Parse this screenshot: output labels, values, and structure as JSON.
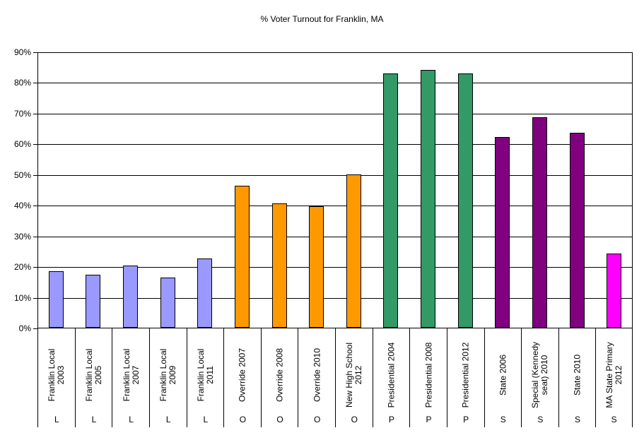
{
  "chart_data": {
    "type": "bar",
    "title": "% Voter Turnout for Franklin, MA",
    "xlabel": "",
    "ylabel": "",
    "ylim": [
      0,
      90
    ],
    "yticks": [
      "0%",
      "10%",
      "20%",
      "30%",
      "40%",
      "50%",
      "60%",
      "70%",
      "80%",
      "90%"
    ],
    "grid": true,
    "legend": null,
    "categories": [
      "Franklin Local 2003",
      "Franklin Local 2005",
      "Franklin Local 2007",
      "Franklin Local 2009",
      "Franklin Local 2011",
      "Override 2007",
      "Override 2008",
      "Override 2010",
      "New High School 2012",
      "Presidential 2004",
      "Presidential 2008",
      "Presidential 2012",
      "State 2006",
      "Special (Kennedy seat) 2010",
      "State 2010",
      "MA State Primary 2012"
    ],
    "category_labels": [
      "Franklin Local\n2003",
      "Franklin Local\n2005",
      "Franklin Local\n2007",
      "Franklin Local\n2009",
      "Franklin Local\n2011",
      "Override 2007",
      "Override 2008",
      "Override 2010",
      "New High School\n2012",
      "Presidential 2004",
      "Presidential 2008",
      "Presidential 2012",
      "State 2006",
      "Special (Kennedy\nseat) 2010",
      "State 2010",
      "MA State Primary\n2012"
    ],
    "groups": [
      "L",
      "L",
      "L",
      "L",
      "L",
      "O",
      "O",
      "O",
      "O",
      "P",
      "P",
      "P",
      "S",
      "S",
      "S",
      "S"
    ],
    "values": [
      18.4,
      17.3,
      20.3,
      16.3,
      22.6,
      46.3,
      40.7,
      39.6,
      50.0,
      83.1,
      84.3,
      83.1,
      62.2,
      68.8,
      63.8,
      24.2
    ],
    "colors": [
      "#9999ff",
      "#9999ff",
      "#9999ff",
      "#9999ff",
      "#9999ff",
      "#ff9900",
      "#ff9900",
      "#ff9900",
      "#ff9900",
      "#339966",
      "#339966",
      "#339966",
      "#800080",
      "#800080",
      "#800080",
      "#ff00ff"
    ],
    "group_colors": {
      "L": "#9999ff",
      "O": "#ff9900",
      "P": "#339966",
      "S": "#800080",
      "S-primary": "#ff00ff"
    }
  }
}
